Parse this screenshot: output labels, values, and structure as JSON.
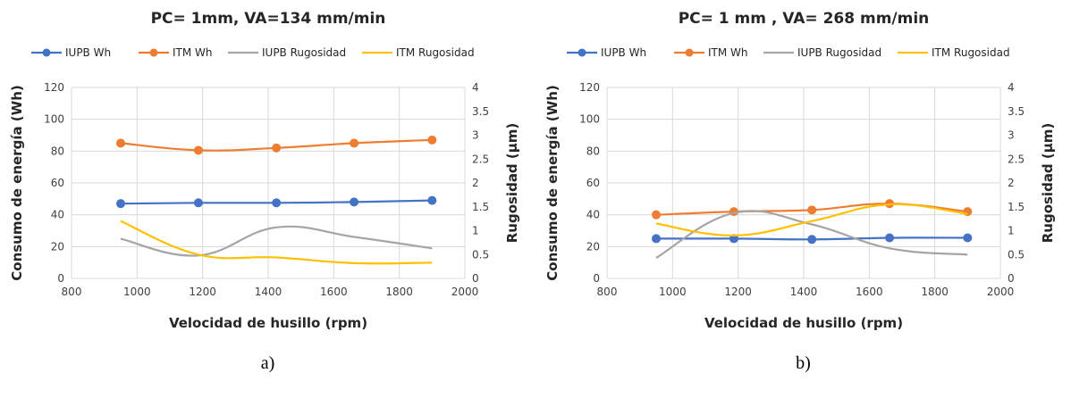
{
  "colors": {
    "iupb_wh": "#4472C4",
    "itm_wh": "#ED7D31",
    "iupb_rug": "#A5A5A5",
    "itm_rug": "#FFC000",
    "grid": "#D9D9D9"
  },
  "chart_data": [
    {
      "type": "line",
      "title": "PC= 1mm, VA=134 mm/min",
      "caption": "a)",
      "xlabel": "Velocidad de husillo (rpm)",
      "ylabel": "Consumo de energía (Wh)",
      "y2label": "Rugosidad (µm)",
      "xlim": [
        800,
        2000
      ],
      "ylim": [
        0,
        120
      ],
      "y2lim": [
        0,
        4
      ],
      "x_ticks": [
        "800",
        "1000",
        "1200",
        "1400",
        "1600",
        "1800",
        "2000"
      ],
      "y_ticks": [
        "0",
        "20",
        "40",
        "60",
        "80",
        "100",
        "120"
      ],
      "y2_ticks": [
        "0",
        "0.5",
        "1",
        "1.5",
        "2",
        "2.5",
        "3",
        "3.5",
        "4"
      ],
      "grid": true,
      "legend_position": "top",
      "x": [
        950,
        1187,
        1425,
        1662,
        1900
      ],
      "series": [
        {
          "name": "IUPB Wh",
          "axis": "left",
          "markers": true,
          "values": [
            47,
            47.5,
            47.5,
            48,
            49
          ]
        },
        {
          "name": "ITM Wh",
          "axis": "left",
          "markers": true,
          "values": [
            85,
            80.5,
            82,
            85,
            87
          ]
        },
        {
          "name": "IUPB Rugosidad",
          "axis": "right",
          "markers": false,
          "values": [
            0.83,
            0.48,
            1.07,
            0.87,
            0.63
          ]
        },
        {
          "name": "ITM Rugosidad",
          "axis": "right",
          "markers": false,
          "values": [
            1.2,
            0.5,
            0.44,
            0.32,
            0.33
          ]
        }
      ]
    },
    {
      "type": "line",
      "title": "PC= 1 mm , VA= 268 mm/min",
      "caption": "b)",
      "xlabel": "Velocidad de husillo (rpm)",
      "ylabel": "Consumo de energía (Wh)",
      "y2label": "Rugosidad (µm)",
      "xlim": [
        800,
        2000
      ],
      "ylim": [
        0,
        120
      ],
      "y2lim": [
        0,
        4
      ],
      "x_ticks": [
        "800",
        "1000",
        "1200",
        "1400",
        "1600",
        "1800",
        "2000"
      ],
      "y_ticks": [
        "0",
        "20",
        "40",
        "60",
        "80",
        "100",
        "120"
      ],
      "y2_ticks": [
        "0",
        "0.5",
        "1",
        "1.5",
        "2",
        "2.5",
        "3",
        "3.5",
        "4"
      ],
      "grid": true,
      "legend_position": "top",
      "x": [
        950,
        1187,
        1425,
        1662,
        1900
      ],
      "series": [
        {
          "name": "IUPB Wh",
          "axis": "left",
          "markers": true,
          "values": [
            25,
            25,
            24.5,
            25.5,
            25.5
          ]
        },
        {
          "name": "ITM Wh",
          "axis": "left",
          "markers": true,
          "values": [
            40,
            42,
            43,
            47,
            42
          ]
        },
        {
          "name": "IUPB Rugosidad",
          "axis": "right",
          "markers": false,
          "values": [
            0.43,
            1.37,
            1.13,
            0.63,
            0.5
          ]
        },
        {
          "name": "ITM Rugosidad",
          "axis": "right",
          "markers": false,
          "values": [
            1.15,
            0.9,
            1.2,
            1.55,
            1.35
          ]
        }
      ]
    }
  ]
}
